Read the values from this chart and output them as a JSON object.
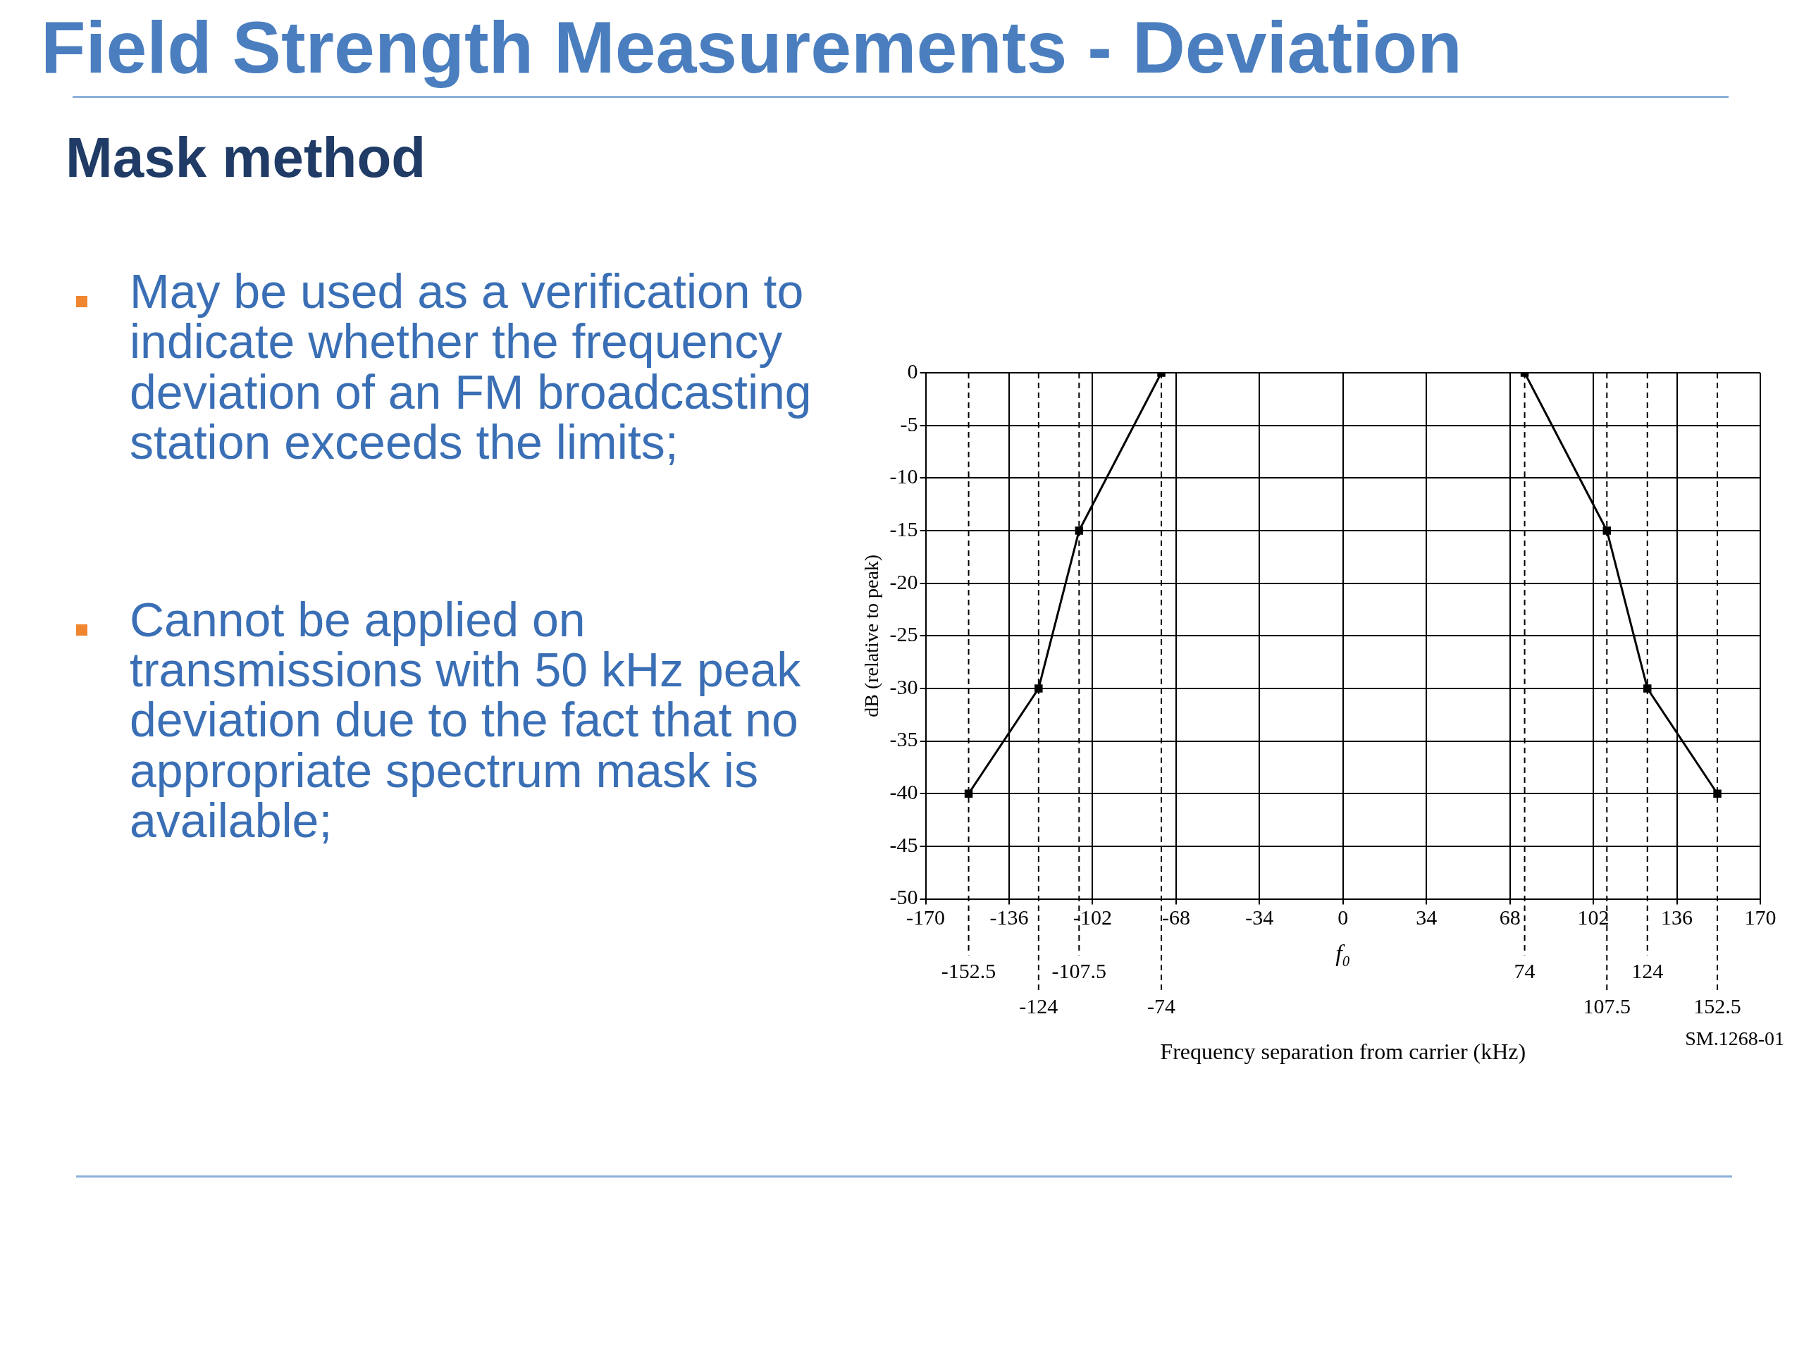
{
  "chart_data": {
    "type": "line",
    "title": "Field Strength Measurements - Deviation",
    "subtitle": "Mask method",
    "xlabel": "Frequency separation from carrier (kHz)",
    "ylabel": "dB (relative to peak)",
    "annotations": [
      "May be used as a verification to indicate whether the frequency deviation of an FM broadcasting station exceeds the limits;",
      "Cannot be applied on transmissions with 50 kHz peak deviation due to the fact that no appropriate spectrum mask is available;",
      "f₀",
      "SM.1268-01"
    ],
    "series": [
      {
        "color": "#000000",
        "x": [
          -152.5,
          -124,
          -107.5,
          -74
        ],
        "values": [
          -40,
          -30,
          -15,
          0
        ]
      },
      {
        "color": "#000000",
        "x": [
          74,
          107.5,
          124,
          152.5
        ],
        "values": [
          0,
          -15,
          -30,
          -40
        ]
      }
    ],
    "xlim": [
      -170,
      170
    ],
    "xticks": [
      -170,
      -136,
      -102,
      -68,
      -34,
      0,
      34,
      68,
      102,
      136,
      170
    ],
    "ylim": [
      -50,
      0
    ],
    "yticks": [
      -50,
      -45,
      -40,
      -35,
      -30,
      -25,
      -20,
      -15,
      -10,
      -5,
      0
    ],
    "ref_lines": [
      {
        "axis": "x",
        "value": -152.5,
        "label": "-152.5"
      },
      {
        "axis": "x",
        "value": -124,
        "label": "-124"
      },
      {
        "axis": "x",
        "value": -107.5,
        "label": "-107.5"
      },
      {
        "axis": "x",
        "value": -74,
        "label": "-74"
      },
      {
        "axis": "x",
        "value": 74,
        "label": "74"
      },
      {
        "axis": "x",
        "value": 107.5,
        "label": "107.5"
      },
      {
        "axis": "x",
        "value": 124,
        "label": "124"
      },
      {
        "axis": "x",
        "value": 152.5,
        "label": "152.5"
      }
    ],
    "grid": true,
    "legend": false,
    "marker": "square",
    "line_style": "solid"
  }
}
